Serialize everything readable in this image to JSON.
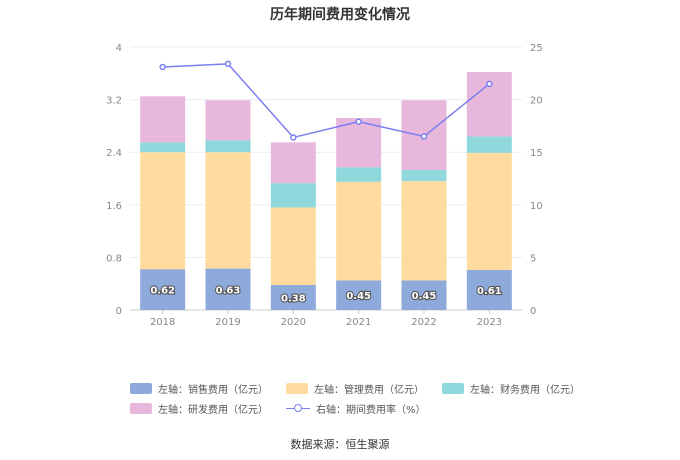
{
  "title": "历年期间费用变化情况",
  "source": "数据来源：恒生聚源",
  "colors": {
    "sales": "#8eaadb",
    "admin": "#ffdba0",
    "finance": "#8fd8dc",
    "rd": "#e8b8dc",
    "rate": "#7b7ff0"
  },
  "legend": [
    {
      "key": "sales",
      "label": "左轴：销售费用（亿元）",
      "kind": "bar"
    },
    {
      "key": "admin",
      "label": "左轴：管理费用（亿元）",
      "kind": "bar"
    },
    {
      "key": "finance",
      "label": "左轴：财务费用（亿元）",
      "kind": "bar"
    },
    {
      "key": "rd",
      "label": "左轴：研发费用（亿元）",
      "kind": "bar"
    },
    {
      "key": "rate",
      "label": "右轴：期间费用率（%）",
      "kind": "line"
    }
  ],
  "chart_data": {
    "type": "bar",
    "stacked": true,
    "categories": [
      "2018",
      "2019",
      "2020",
      "2021",
      "2022",
      "2023"
    ],
    "series": [
      {
        "key": "sales",
        "name": "左轴：销售费用（亿元）",
        "values": [
          0.62,
          0.63,
          0.38,
          0.45,
          0.45,
          0.61
        ],
        "labels": [
          "0.62",
          "0.63",
          "0.38",
          "0.45",
          "0.45",
          "0.61"
        ]
      },
      {
        "key": "admin",
        "name": "左轴：管理费用（亿元）",
        "values": [
          1.78,
          1.77,
          1.18,
          1.5,
          1.51,
          1.78
        ]
      },
      {
        "key": "finance",
        "name": "左轴：财务费用（亿元）",
        "values": [
          0.15,
          0.18,
          0.37,
          0.22,
          0.17,
          0.25
        ]
      },
      {
        "key": "rd",
        "name": "左轴：研发费用（亿元）",
        "values": [
          0.7,
          0.61,
          0.62,
          0.75,
          1.06,
          0.98
        ]
      }
    ],
    "line": {
      "key": "rate",
      "name": "右轴：期间费用率（%）",
      "values": [
        23.1,
        23.4,
        16.4,
        17.9,
        16.5,
        21.5
      ]
    },
    "y_left": {
      "min": 0,
      "max": 4,
      "ticks": [
        "0",
        "0.8",
        "1.6",
        "2.4",
        "3.2",
        "4"
      ]
    },
    "y_right": {
      "min": 0,
      "max": 25,
      "ticks": [
        "0",
        "5",
        "10",
        "15",
        "20",
        "25"
      ]
    }
  }
}
